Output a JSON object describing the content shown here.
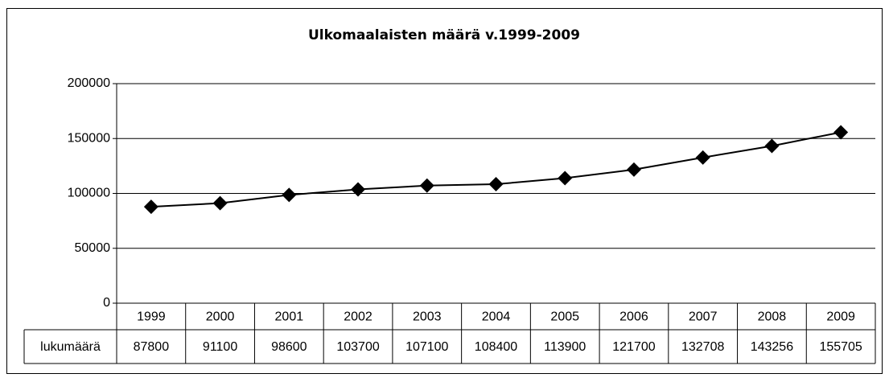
{
  "chart_data": {
    "type": "line",
    "title": "Ulkomaalaisten määrä v.1999-2009",
    "categories": [
      "1999",
      "2000",
      "2001",
      "2002",
      "2003",
      "2004",
      "2005",
      "2006",
      "2007",
      "2008",
      "2009"
    ],
    "series": [
      {
        "name": "lukumäärä",
        "color": "#000000",
        "values": [
          87800,
          91100,
          98600,
          103700,
          107100,
          108400,
          113900,
          121700,
          132708,
          143256,
          155705
        ]
      }
    ],
    "ylim": [
      0,
      200000
    ],
    "yticks": [
      0,
      50000,
      100000,
      150000,
      200000
    ],
    "grid": true,
    "marker": "diamond"
  }
}
